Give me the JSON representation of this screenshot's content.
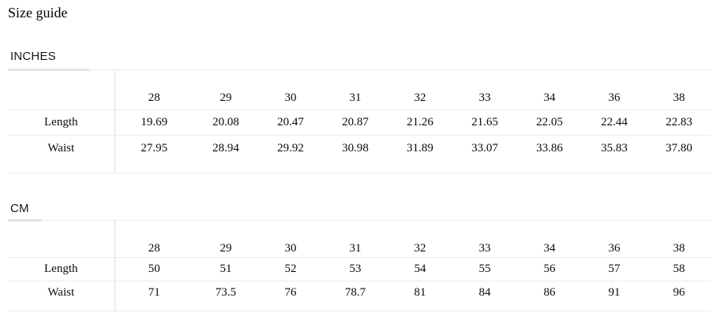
{
  "title": "Size guide",
  "colors": {
    "background": "#ffffff",
    "text": "#0a0a0a",
    "heading_text": "#151515",
    "rule_light": "#ececef",
    "rule_dark_segment": "#e3e3e7",
    "vertical_divider": "#dfe0e3"
  },
  "sections": [
    {
      "id": "inches",
      "heading": "INCHES",
      "table": {
        "sizes": [
          "28",
          "29",
          "30",
          "31",
          "32",
          "33",
          "34",
          "36",
          "38"
        ],
        "rows": [
          {
            "label": "Length",
            "values": [
              "19.69",
              "20.08",
              "20.47",
              "20.87",
              "21.26",
              "21.65",
              "22.05",
              "22.44",
              "22.83"
            ]
          },
          {
            "label": "Waist",
            "values": [
              "27.95",
              "28.94",
              "29.92",
              "30.98",
              "31.89",
              "33.07",
              "33.86",
              "35.83",
              "37.80"
            ]
          }
        ]
      }
    },
    {
      "id": "cm",
      "heading": "CM",
      "table": {
        "sizes": [
          "28",
          "29",
          "30",
          "31",
          "32",
          "33",
          "34",
          "36",
          "38"
        ],
        "rows": [
          {
            "label": "Length",
            "values": [
              "50",
              "51",
              "52",
              "53",
              "54",
              "55",
              "56",
              "57",
              "58"
            ]
          },
          {
            "label": "Waist",
            "values": [
              "71",
              "73.5",
              "76",
              "78.7",
              "81",
              "84",
              "86",
              "91",
              "96"
            ]
          }
        ]
      }
    }
  ]
}
